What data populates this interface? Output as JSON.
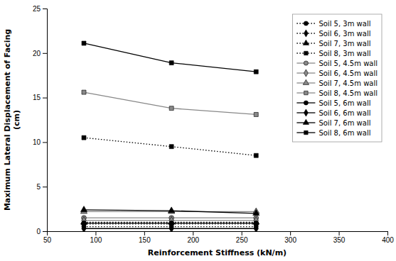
{
  "chart_data": {
    "type": "line",
    "xlabel": "Reinforcement Stiffness (kN/m)",
    "ylabel": "Maximum Lateral Displacement of Facing\n(cm)",
    "x": [
      88,
      178,
      265
    ],
    "series": [
      {
        "name": "Soil 5, 3m wall",
        "color": "black",
        "marker": "circle",
        "line_style": "dotted",
        "values": [
          0.8,
          0.8,
          0.8
        ]
      },
      {
        "name": "Soil 6, 3m wall",
        "color": "black",
        "marker": "diamond",
        "line_style": "dotted",
        "values": [
          0.5,
          0.5,
          0.5
        ]
      },
      {
        "name": "Soil 7, 3m wall",
        "color": "black",
        "marker": "triangle",
        "line_style": "dotted",
        "values": [
          1.0,
          1.0,
          1.0
        ]
      },
      {
        "name": "Soil 8, 3m wall",
        "color": "black",
        "marker": "square",
        "line_style": "dotted",
        "values": [
          10.5,
          9.5,
          8.5
        ]
      },
      {
        "name": "Soil 5, 4.5m wall",
        "color": "#888888",
        "marker": "circle",
        "line_style": "solid",
        "values": [
          1.5,
          1.5,
          1.5
        ]
      },
      {
        "name": "Soil 6, 4.5m wall",
        "color": "#888888",
        "marker": "diamond",
        "line_style": "solid",
        "values": [
          1.2,
          1.2,
          1.2
        ]
      },
      {
        "name": "Soil 7, 4.5m wall",
        "color": "#888888",
        "marker": "triangle",
        "line_style": "solid",
        "values": [
          2.2,
          2.2,
          2.2
        ]
      },
      {
        "name": "Soil 8, 4.5m wall",
        "color": "#888888",
        "marker": "square",
        "line_style": "solid",
        "values": [
          15.6,
          13.8,
          13.1
        ]
      },
      {
        "name": "Soil 5, 6m wall",
        "color": "black",
        "marker": "circle",
        "line_style": "solid",
        "values": [
          0.9,
          0.9,
          0.9
        ]
      },
      {
        "name": "Soil 6, 6m wall",
        "color": "black",
        "marker": "diamond",
        "line_style": "solid",
        "values": [
          0.3,
          0.3,
          0.3
        ]
      },
      {
        "name": "Soil 7, 6m wall",
        "color": "black",
        "marker": "triangle",
        "line_style": "solid",
        "values": [
          2.4,
          2.3,
          2.0
        ]
      },
      {
        "name": "Soil 8, 6m wall",
        "color": "black",
        "marker": "square",
        "line_style": "solid",
        "values": [
          21.1,
          18.9,
          17.9
        ]
      }
    ],
    "xlim": [
      50,
      400
    ],
    "ylim": [
      0,
      25
    ],
    "xticks": [
      50,
      100,
      150,
      200,
      250,
      300,
      350,
      400
    ],
    "yticks": [
      0,
      5,
      10,
      15,
      20,
      25
    ],
    "grid": false,
    "legend": "upper right"
  }
}
